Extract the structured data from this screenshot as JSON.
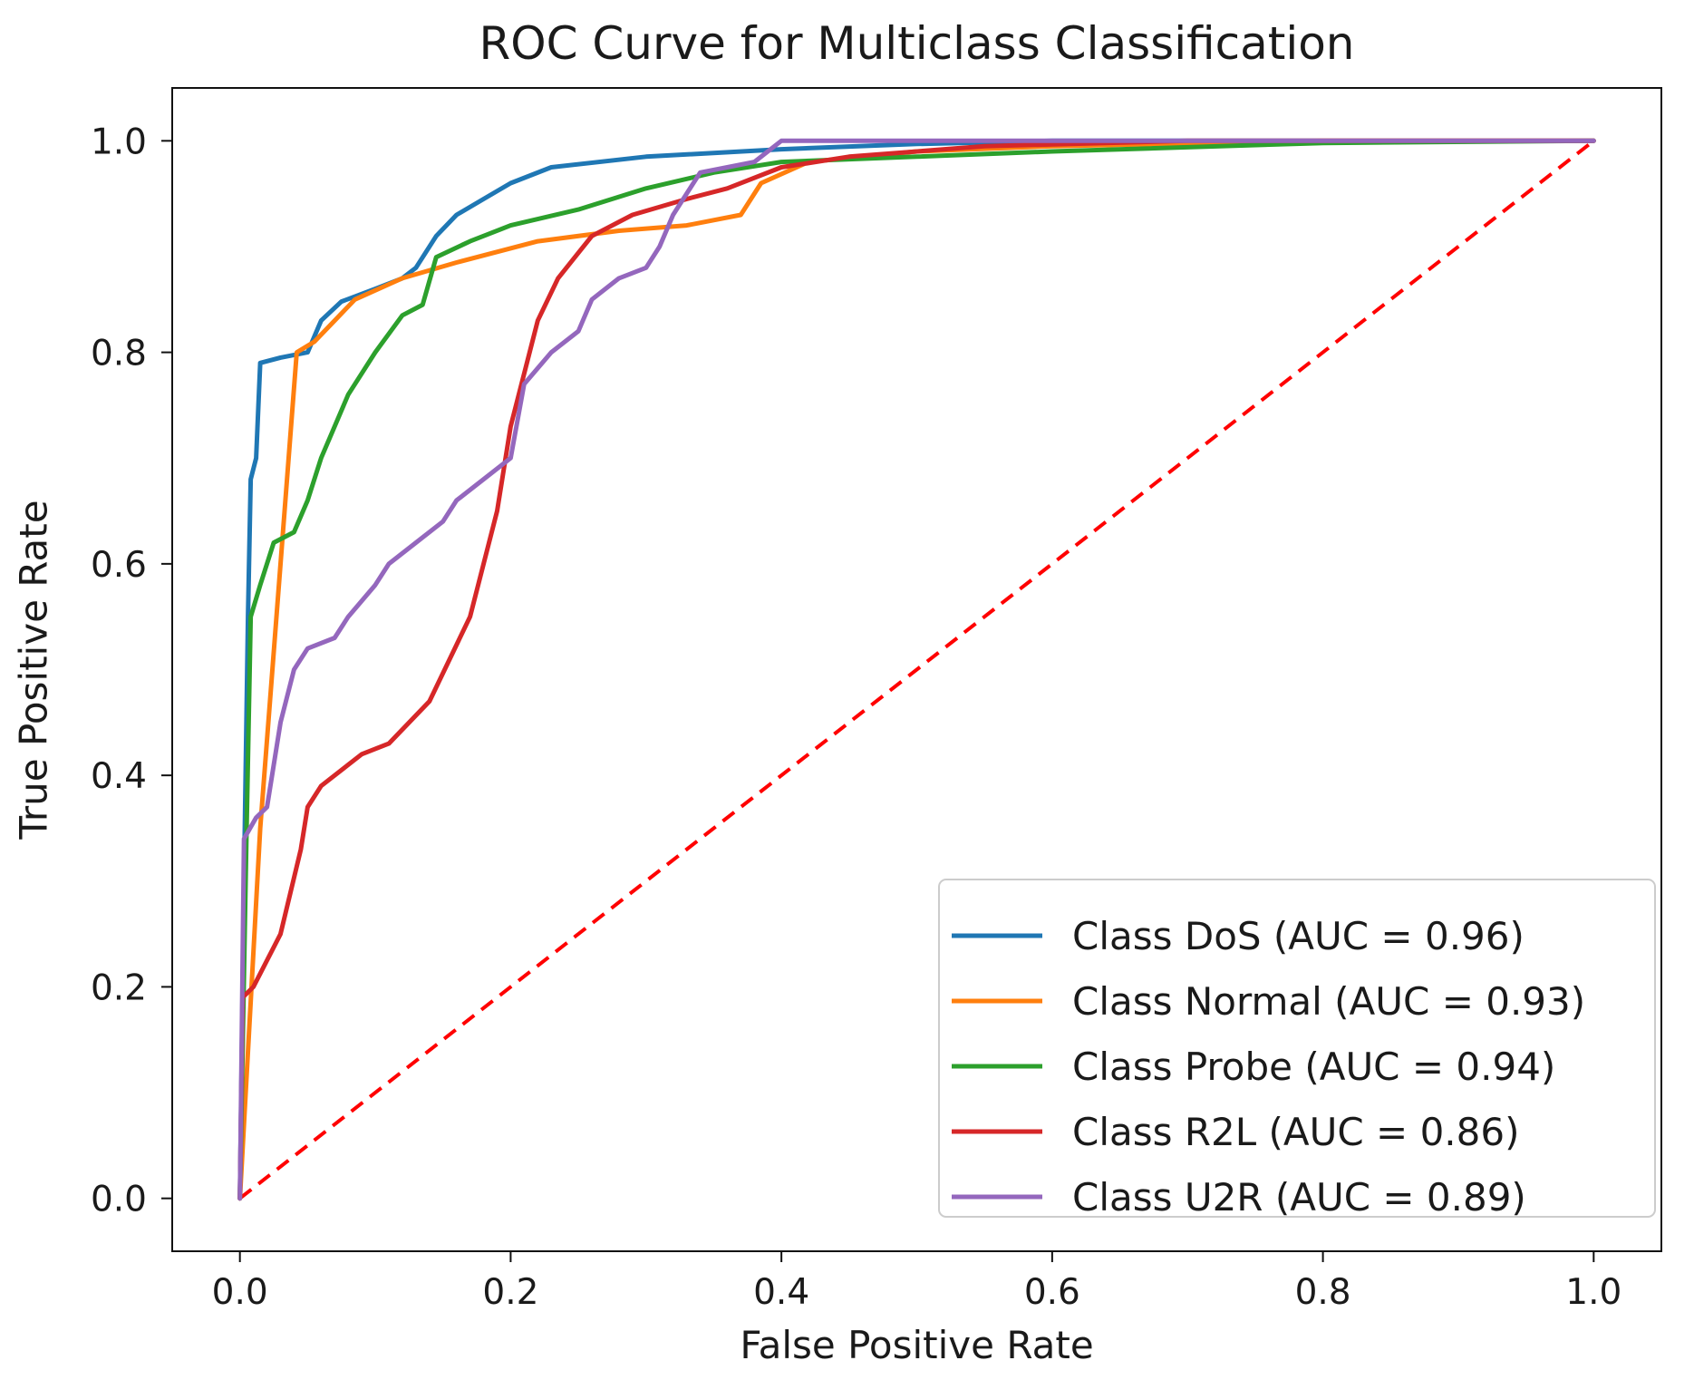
{
  "chart_data": {
    "type": "line",
    "title": "ROC Curve for Multiclass Classification",
    "xlabel": "False Positive Rate",
    "ylabel": "True Positive Rate",
    "xlim": [
      -0.05,
      1.05
    ],
    "ylim": [
      -0.05,
      1.05
    ],
    "xticks": [
      0.0,
      0.2,
      0.4,
      0.6,
      0.8,
      1.0
    ],
    "yticks": [
      0.0,
      0.2,
      0.4,
      0.6,
      0.8,
      1.0
    ],
    "xtick_labels": [
      "0.0",
      "0.2",
      "0.4",
      "0.6",
      "0.8",
      "1.0"
    ],
    "ytick_labels": [
      "0.0",
      "0.2",
      "0.4",
      "0.6",
      "0.8",
      "1.0"
    ],
    "grid": false,
    "legend_position": "bottom-right",
    "series": [
      {
        "name": "Class DoS",
        "label": "Class DoS (AUC = 0.96)",
        "color": "#1f77b4",
        "points": [
          [
            0,
            0
          ],
          [
            0.003,
            0.3
          ],
          [
            0.006,
            0.55
          ],
          [
            0.008,
            0.68
          ],
          [
            0.012,
            0.7
          ],
          [
            0.015,
            0.79
          ],
          [
            0.03,
            0.795
          ],
          [
            0.05,
            0.8
          ],
          [
            0.06,
            0.83
          ],
          [
            0.075,
            0.848
          ],
          [
            0.1,
            0.86
          ],
          [
            0.12,
            0.87
          ],
          [
            0.13,
            0.88
          ],
          [
            0.145,
            0.91
          ],
          [
            0.16,
            0.93
          ],
          [
            0.18,
            0.945
          ],
          [
            0.2,
            0.96
          ],
          [
            0.23,
            0.975
          ],
          [
            0.3,
            0.985
          ],
          [
            0.4,
            0.992
          ],
          [
            0.5,
            0.997
          ],
          [
            0.6,
            1.0
          ],
          [
            1.0,
            1.0
          ]
        ]
      },
      {
        "name": "Class Normal",
        "label": "Class Normal (AUC = 0.93)",
        "color": "#ff7f0e",
        "points": [
          [
            0,
            0
          ],
          [
            0.015,
            0.35
          ],
          [
            0.03,
            0.6
          ],
          [
            0.042,
            0.8
          ],
          [
            0.055,
            0.81
          ],
          [
            0.07,
            0.83
          ],
          [
            0.085,
            0.85
          ],
          [
            0.12,
            0.87
          ],
          [
            0.16,
            0.885
          ],
          [
            0.22,
            0.905
          ],
          [
            0.28,
            0.915
          ],
          [
            0.33,
            0.92
          ],
          [
            0.37,
            0.93
          ],
          [
            0.385,
            0.96
          ],
          [
            0.42,
            0.98
          ],
          [
            0.5,
            0.99
          ],
          [
            0.6,
            0.995
          ],
          [
            0.8,
            1.0
          ],
          [
            1.0,
            1.0
          ]
        ]
      },
      {
        "name": "Class Probe",
        "label": "Class Probe (AUC = 0.94)",
        "color": "#2ca02c",
        "points": [
          [
            0,
            0
          ],
          [
            0.005,
            0.35
          ],
          [
            0.008,
            0.55
          ],
          [
            0.015,
            0.58
          ],
          [
            0.025,
            0.62
          ],
          [
            0.04,
            0.63
          ],
          [
            0.05,
            0.66
          ],
          [
            0.06,
            0.7
          ],
          [
            0.08,
            0.76
          ],
          [
            0.1,
            0.8
          ],
          [
            0.12,
            0.835
          ],
          [
            0.135,
            0.845
          ],
          [
            0.145,
            0.89
          ],
          [
            0.17,
            0.905
          ],
          [
            0.2,
            0.92
          ],
          [
            0.25,
            0.935
          ],
          [
            0.3,
            0.955
          ],
          [
            0.35,
            0.97
          ],
          [
            0.4,
            0.98
          ],
          [
            0.5,
            0.985
          ],
          [
            0.6,
            0.99
          ],
          [
            0.8,
            0.998
          ],
          [
            1.0,
            1.0
          ]
        ]
      },
      {
        "name": "Class R2L",
        "label": "Class R2L (AUC = 0.86)",
        "color": "#d62728",
        "points": [
          [
            0,
            0
          ],
          [
            0.002,
            0.19
          ],
          [
            0.01,
            0.2
          ],
          [
            0.03,
            0.25
          ],
          [
            0.045,
            0.33
          ],
          [
            0.05,
            0.37
          ],
          [
            0.06,
            0.39
          ],
          [
            0.09,
            0.42
          ],
          [
            0.11,
            0.43
          ],
          [
            0.14,
            0.47
          ],
          [
            0.17,
            0.55
          ],
          [
            0.19,
            0.65
          ],
          [
            0.2,
            0.73
          ],
          [
            0.22,
            0.83
          ],
          [
            0.235,
            0.87
          ],
          [
            0.26,
            0.91
          ],
          [
            0.29,
            0.93
          ],
          [
            0.33,
            0.945
          ],
          [
            0.36,
            0.955
          ],
          [
            0.4,
            0.975
          ],
          [
            0.45,
            0.985
          ],
          [
            0.55,
            0.995
          ],
          [
            0.7,
            1.0
          ],
          [
            1.0,
            1.0
          ]
        ]
      },
      {
        "name": "Class U2R",
        "label": "Class U2R (AUC = 0.89)",
        "color": "#9467bd",
        "points": [
          [
            0,
            0
          ],
          [
            0.003,
            0.34
          ],
          [
            0.012,
            0.36
          ],
          [
            0.02,
            0.37
          ],
          [
            0.03,
            0.45
          ],
          [
            0.04,
            0.5
          ],
          [
            0.05,
            0.52
          ],
          [
            0.07,
            0.53
          ],
          [
            0.08,
            0.55
          ],
          [
            0.1,
            0.58
          ],
          [
            0.11,
            0.6
          ],
          [
            0.13,
            0.62
          ],
          [
            0.15,
            0.64
          ],
          [
            0.16,
            0.66
          ],
          [
            0.18,
            0.68
          ],
          [
            0.2,
            0.7
          ],
          [
            0.21,
            0.77
          ],
          [
            0.23,
            0.8
          ],
          [
            0.25,
            0.82
          ],
          [
            0.26,
            0.85
          ],
          [
            0.28,
            0.87
          ],
          [
            0.3,
            0.88
          ],
          [
            0.31,
            0.9
          ],
          [
            0.32,
            0.93
          ],
          [
            0.34,
            0.97
          ],
          [
            0.36,
            0.975
          ],
          [
            0.38,
            0.98
          ],
          [
            0.4,
            1.0
          ],
          [
            0.5,
            1.0
          ],
          [
            1.0,
            1.0
          ]
        ]
      }
    ],
    "reference_line": {
      "points": [
        [
          0,
          0
        ],
        [
          1,
          1
        ]
      ],
      "color": "#ff0000",
      "style": "dashed"
    }
  }
}
